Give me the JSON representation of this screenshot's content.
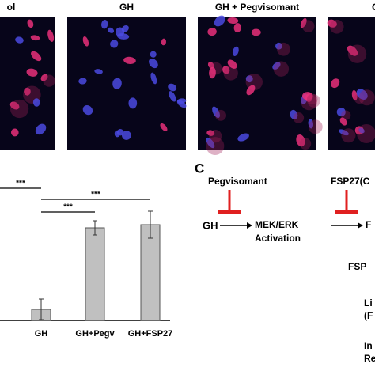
{
  "panel_images": {
    "labels": [
      "ol",
      "GH",
      "GH + Pegvisomant",
      "GH"
    ]
  },
  "chart_data": {
    "type": "bar",
    "categories": [
      "GH",
      "GH+Pegv",
      "GH+FSP27"
    ],
    "values": [
      14,
      117,
      121
    ],
    "errors": [
      13,
      9,
      17
    ],
    "color": "#c0c0c0",
    "ylim": [
      0,
      140
    ],
    "significance": [
      {
        "label": "***",
        "from": -1,
        "to": 0
      },
      {
        "label": "***",
        "from": 0,
        "to": 2
      },
      {
        "label": "***",
        "from": 0,
        "to": 1
      }
    ]
  },
  "pathway": {
    "panel_label": "C",
    "inhibitor_1": "Pegvisomant",
    "source": "GH",
    "node_1": [
      "MEK/ERK",
      "Activation"
    ],
    "inhibitor_2": "FSP27(C",
    "node_2": "F",
    "node_3": "FSP",
    "node_4": [
      "Li",
      "(F"
    ],
    "node_5": [
      "In",
      "Re"
    ]
  }
}
